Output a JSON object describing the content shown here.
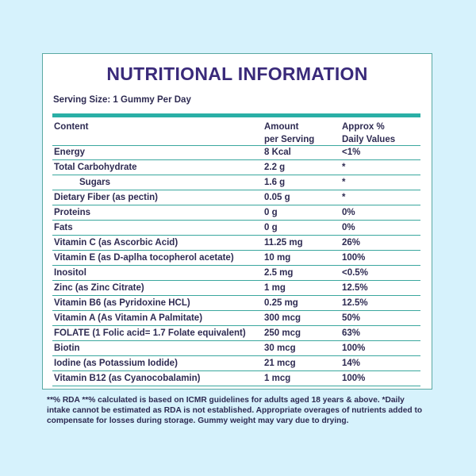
{
  "title": "NUTRITIONAL INFORMATION",
  "serving_size": "Serving Size: 1 Gummy Per Day",
  "header": {
    "content": "Content",
    "amount_line1": "Amount",
    "amount_line2": "per Serving",
    "dv_line1": "Approx %",
    "dv_line2": "Daily Values"
  },
  "rows": [
    {
      "content": "Energy",
      "amount": "8 Kcal",
      "dv": "<1%"
    },
    {
      "content": "Total Carbohydrate",
      "amount": "2.2 g",
      "dv": "*"
    },
    {
      "content": "Sugars",
      "amount": "1.6 g",
      "dv": "*"
    },
    {
      "content": "Dietary Fiber (as pectin)",
      "amount": "0.05 g",
      "dv": "*"
    },
    {
      "content": "Proteins",
      "amount": "0 g",
      "dv": "0%"
    },
    {
      "content": "Fats",
      "amount": "0 g",
      "dv": "0%"
    },
    {
      "content": "Vitamin C (as Ascorbic Acid)",
      "amount": "11.25 mg",
      "dv": "26%"
    },
    {
      "content": "Vitamin E (as D-aplha tocopherol acetate)",
      "amount": "10 mg",
      "dv": "100%"
    },
    {
      "content": "Inositol",
      "amount": "2.5 mg",
      "dv": "<0.5%"
    },
    {
      "content": "Zinc (as Zinc Citrate)",
      "amount": "1 mg",
      "dv": "12.5%"
    },
    {
      "content": "Vitamin B6 (as Pyridoxine HCL)",
      "amount": "0.25 mg",
      "dv": "12.5%"
    },
    {
      "content": "Vitamin A (As Vitamin A Palmitate)",
      "amount": "300 mcg",
      "dv": "50%"
    },
    {
      "content": "FOLATE (1 Folic acid= 1.7 Folate equivalent)",
      "amount": "250 mcg",
      "dv": "63%"
    },
    {
      "content": "Biotin",
      "amount": "30 mcg",
      "dv": "100%"
    },
    {
      "content": "Iodine (as Potassium Iodide)",
      "amount": "21 mcg",
      "dv": "14%"
    },
    {
      "content": "Vitamin B12 (as Cyanocobalamin)",
      "amount": "1 mcg",
      "dv": "100%"
    }
  ],
  "footnote": "**% RDA **% calculated is based on ICMR guidelines for adults aged 18 years &  above. *Daily intake cannot be estimated as RDA is not established. Appropriate  overages of nutrients added to compensate for losses during storage. Gummy weight may vary due to drying."
}
